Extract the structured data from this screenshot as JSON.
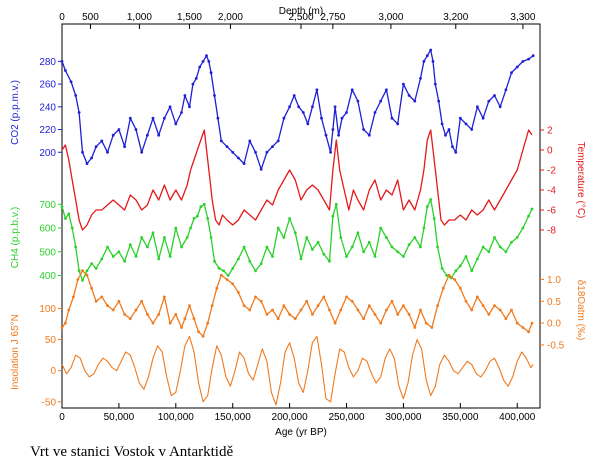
{
  "caption": "Vrt ve stanici Vostok v Antarktidě",
  "colors": {
    "co2": "#1f1fd6",
    "temperature": "#e41a1c",
    "ch4": "#2bd12b",
    "isotope": "#f07a1e",
    "insolation": "#f07a1e",
    "axis": "#000000"
  },
  "chart_data": {
    "type": "line",
    "x_axis": {
      "label": "Age (yr BP)",
      "range": [
        0,
        420000
      ],
      "ticks": [
        "0",
        "50,000",
        "100,000",
        "150,000",
        "200,000",
        "250,000",
        "300,000",
        "350,000",
        "400,000"
      ],
      "tick_values": [
        0,
        50000,
        100000,
        150000,
        200000,
        250000,
        300000,
        350000,
        400000
      ]
    },
    "top_axis": {
      "label": "Depth (m)",
      "ticks": [
        "0",
        "500",
        "1,000",
        "1,500",
        "2,000",
        "2,500",
        "2,750",
        "3,000",
        "3,200",
        "3,300"
      ],
      "tick_ages": [
        0,
        25000,
        68000,
        112000,
        148000,
        210000,
        238000,
        289000,
        346000,
        405000
      ]
    },
    "co2": {
      "label": "CO2 (p.p.m.v.)",
      "ticks": [
        200,
        220,
        240,
        260,
        280
      ],
      "range": [
        180,
        290
      ],
      "x": [
        0,
        3000,
        8000,
        12000,
        15000,
        18000,
        22000,
        26000,
        30000,
        35000,
        40000,
        45000,
        50000,
        55000,
        60000,
        65000,
        70000,
        75000,
        80000,
        85000,
        90000,
        95000,
        100000,
        105000,
        108000,
        112000,
        115000,
        118000,
        121000,
        124000,
        127000,
        129000,
        131000,
        134000,
        137000,
        140000,
        145000,
        150000,
        155000,
        160000,
        165000,
        170000,
        175000,
        180000,
        185000,
        190000,
        195000,
        200000,
        204000,
        208000,
        212000,
        216000,
        220000,
        224000,
        228000,
        232000,
        236000,
        238000,
        240000,
        243000,
        246000,
        250000,
        255000,
        260000,
        265000,
        270000,
        275000,
        280000,
        285000,
        290000,
        295000,
        300000,
        305000,
        310000,
        315000,
        318000,
        321000,
        324000,
        326000,
        328000,
        331000,
        334000,
        337000,
        340000,
        343000,
        346000,
        350000,
        355000,
        360000,
        365000,
        370000,
        375000,
        380000,
        385000,
        390000,
        395000,
        400000,
        405000,
        410000,
        414000
      ],
      "y": [
        280,
        272,
        262,
        250,
        235,
        200,
        190,
        195,
        205,
        210,
        200,
        215,
        220,
        205,
        230,
        220,
        200,
        215,
        230,
        215,
        230,
        240,
        225,
        235,
        250,
        240,
        260,
        265,
        275,
        280,
        285,
        280,
        270,
        250,
        230,
        210,
        205,
        200,
        195,
        190,
        210,
        200,
        185,
        200,
        205,
        210,
        230,
        240,
        250,
        240,
        235,
        225,
        240,
        255,
        230,
        215,
        200,
        220,
        240,
        215,
        230,
        235,
        255,
        245,
        220,
        215,
        235,
        245,
        255,
        230,
        225,
        260,
        250,
        245,
        265,
        280,
        285,
        290,
        280,
        260,
        245,
        225,
        215,
        220,
        205,
        200,
        230,
        225,
        220,
        240,
        230,
        245,
        250,
        240,
        255,
        270,
        275,
        280,
        282,
        285
      ]
    },
    "temperature": {
      "label": "Temperature (°C)",
      "ticks": [
        2,
        0,
        -2,
        -4,
        -6,
        -8
      ],
      "range": [
        -9.5,
        3.5
      ],
      "x": [
        0,
        3000,
        6000,
        9000,
        12000,
        15000,
        18000,
        22000,
        26000,
        30000,
        35000,
        40000,
        45000,
        50000,
        55000,
        60000,
        65000,
        70000,
        75000,
        80000,
        85000,
        90000,
        95000,
        100000,
        105000,
        110000,
        113000,
        116000,
        119000,
        122000,
        125000,
        128000,
        130000,
        132000,
        135000,
        138000,
        141000,
        145000,
        150000,
        155000,
        160000,
        165000,
        170000,
        175000,
        180000,
        185000,
        190000,
        195000,
        200000,
        205000,
        210000,
        215000,
        220000,
        225000,
        230000,
        235000,
        238000,
        241000,
        244000,
        248000,
        252000,
        256000,
        260000,
        265000,
        270000,
        275000,
        280000,
        285000,
        290000,
        295000,
        300000,
        305000,
        310000,
        315000,
        318000,
        321000,
        324000,
        327000,
        330000,
        333000,
        336000,
        340000,
        345000,
        350000,
        355000,
        360000,
        365000,
        370000,
        375000,
        380000,
        385000,
        390000,
        395000,
        400000,
        405000,
        410000,
        413000
      ],
      "y": [
        0,
        0.5,
        -1,
        -3,
        -5,
        -7,
        -8,
        -7.5,
        -6.5,
        -6,
        -6,
        -5.5,
        -5,
        -5.5,
        -6,
        -4.5,
        -5,
        -6,
        -5.5,
        -4,
        -5,
        -3.5,
        -5,
        -4,
        -5,
        -3.5,
        -2,
        -1,
        0,
        1,
        2,
        -1,
        -3,
        -5,
        -7,
        -7.5,
        -6.5,
        -7,
        -7.5,
        -7,
        -6,
        -6.5,
        -7,
        -6,
        -5,
        -5.5,
        -4,
        -3,
        -2,
        -3,
        -5,
        -4,
        -3.5,
        -4,
        -5,
        -6,
        -2,
        1,
        -2,
        -4,
        -6,
        -4,
        -5,
        -6,
        -4,
        -3,
        -5,
        -4,
        -4.5,
        -3,
        -6,
        -5,
        -6,
        -4,
        -2,
        1,
        2,
        -1,
        -4,
        -7,
        -7.5,
        -7,
        -7,
        -6.5,
        -7,
        -6,
        -6.5,
        -6,
        -5,
        -6,
        -5,
        -4,
        -3,
        -2,
        0,
        2,
        1.5
      ]
    },
    "ch4": {
      "label": "CH4 (p.p.b.v.)",
      "ticks": [
        400,
        500,
        600,
        700
      ],
      "range": [
        360,
        760
      ],
      "x": [
        0,
        3000,
        6000,
        9000,
        12000,
        15000,
        18000,
        22000,
        26000,
        30000,
        35000,
        40000,
        45000,
        50000,
        55000,
        60000,
        65000,
        70000,
        75000,
        80000,
        85000,
        90000,
        95000,
        100000,
        105000,
        110000,
        113000,
        116000,
        119000,
        122000,
        125000,
        128000,
        131000,
        134000,
        138000,
        142000,
        146000,
        150000,
        155000,
        160000,
        165000,
        170000,
        175000,
        180000,
        185000,
        190000,
        195000,
        200000,
        205000,
        210000,
        215000,
        220000,
        225000,
        230000,
        235000,
        238000,
        241000,
        245000,
        250000,
        255000,
        260000,
        265000,
        270000,
        275000,
        280000,
        285000,
        290000,
        295000,
        300000,
        305000,
        310000,
        315000,
        318000,
        321000,
        324000,
        327000,
        330000,
        334000,
        338000,
        342000,
        346000,
        350000,
        355000,
        360000,
        365000,
        370000,
        375000,
        380000,
        385000,
        390000,
        395000,
        400000,
        405000,
        410000,
        413000
      ],
      "y": [
        690,
        640,
        660,
        600,
        520,
        420,
        380,
        420,
        450,
        430,
        470,
        520,
        480,
        500,
        460,
        530,
        480,
        560,
        520,
        580,
        470,
        560,
        480,
        600,
        520,
        560,
        600,
        640,
        650,
        690,
        700,
        640,
        560,
        460,
        430,
        420,
        400,
        430,
        470,
        520,
        460,
        420,
        450,
        520,
        480,
        600,
        560,
        640,
        580,
        470,
        560,
        510,
        540,
        490,
        460,
        650,
        700,
        560,
        480,
        520,
        580,
        500,
        540,
        480,
        600,
        560,
        520,
        500,
        480,
        530,
        560,
        520,
        600,
        690,
        720,
        640,
        520,
        430,
        400,
        390,
        420,
        440,
        480,
        420,
        470,
        520,
        500,
        560,
        520,
        500,
        540,
        560,
        600,
        650,
        680
      ]
    },
    "isotope": {
      "label": "δ18Oatm (‰)",
      "ticks": [
        "-0.5",
        "0.0",
        "0.5",
        "1.0"
      ],
      "tick_values": [
        -0.5,
        0,
        0.5,
        1.0
      ],
      "range": [
        -0.8,
        1.4
      ],
      "x": [
        0,
        3000,
        6000,
        10000,
        14000,
        18000,
        22000,
        26000,
        30000,
        35000,
        40000,
        45000,
        50000,
        55000,
        60000,
        65000,
        70000,
        75000,
        80000,
        85000,
        90000,
        95000,
        100000,
        105000,
        108000,
        112000,
        116000,
        120000,
        124000,
        128000,
        132000,
        136000,
        140000,
        145000,
        150000,
        155000,
        160000,
        165000,
        170000,
        175000,
        180000,
        185000,
        190000,
        195000,
        200000,
        205000,
        210000,
        215000,
        220000,
        225000,
        230000,
        235000,
        240000,
        245000,
        250000,
        255000,
        260000,
        265000,
        270000,
        275000,
        280000,
        285000,
        290000,
        295000,
        300000,
        305000,
        310000,
        315000,
        320000,
        325000,
        330000,
        335000,
        340000,
        345000,
        350000,
        355000,
        360000,
        365000,
        370000,
        375000,
        380000,
        385000,
        390000,
        395000,
        400000,
        405000,
        410000,
        413000
      ],
      "y": [
        -0.1,
        0.0,
        0.3,
        0.6,
        1.0,
        1.2,
        1.1,
        0.8,
        0.5,
        0.6,
        0.4,
        0.3,
        0.5,
        0.2,
        0.1,
        0.3,
        0.5,
        0.2,
        0.0,
        0.2,
        0.6,
        0.0,
        0.2,
        -0.1,
        0.1,
        0.4,
        0.1,
        -0.2,
        -0.3,
        0.0,
        0.4,
        0.8,
        1.1,
        1.0,
        0.9,
        0.7,
        0.4,
        0.3,
        0.6,
        0.5,
        0.2,
        0.3,
        0.1,
        0.4,
        0.2,
        0.1,
        0.3,
        0.5,
        0.2,
        0.4,
        0.6,
        0.3,
        0.0,
        0.3,
        0.6,
        0.5,
        0.3,
        0.1,
        0.4,
        0.2,
        0.0,
        0.3,
        0.5,
        0.2,
        0.4,
        0.2,
        -0.1,
        0.3,
        0.0,
        -0.1,
        0.4,
        0.8,
        1.1,
        1.0,
        0.8,
        0.5,
        0.3,
        0.6,
        0.4,
        0.2,
        0.4,
        0.3,
        0.1,
        0.3,
        0.0,
        -0.1,
        -0.2,
        0.0
      ]
    },
    "insolation": {
      "label": "Insolation J 65°N",
      "ticks": [
        -50,
        0,
        50,
        100
      ],
      "range": [
        -60,
        120
      ],
      "x": [
        0,
        4000,
        8000,
        12000,
        16000,
        20000,
        24000,
        28000,
        32000,
        36000,
        40000,
        44000,
        48000,
        52000,
        56000,
        60000,
        64000,
        68000,
        72000,
        76000,
        80000,
        84000,
        88000,
        92000,
        96000,
        100000,
        104000,
        108000,
        112000,
        116000,
        120000,
        124000,
        128000,
        132000,
        136000,
        140000,
        144000,
        148000,
        152000,
        156000,
        160000,
        164000,
        168000,
        172000,
        176000,
        180000,
        184000,
        188000,
        192000,
        196000,
        200000,
        204000,
        208000,
        212000,
        216000,
        220000,
        224000,
        228000,
        232000,
        236000,
        240000,
        244000,
        248000,
        252000,
        256000,
        260000,
        264000,
        268000,
        272000,
        276000,
        280000,
        284000,
        288000,
        292000,
        296000,
        300000,
        304000,
        308000,
        312000,
        316000,
        320000,
        324000,
        328000,
        332000,
        336000,
        340000,
        344000,
        348000,
        352000,
        356000,
        360000,
        364000,
        368000,
        372000,
        376000,
        380000,
        384000,
        388000,
        392000,
        396000,
        400000,
        404000,
        408000,
        412000,
        414000
      ],
      "y": [
        10,
        -5,
        5,
        25,
        20,
        0,
        -10,
        -5,
        10,
        20,
        15,
        5,
        0,
        15,
        30,
        25,
        5,
        -20,
        -30,
        -10,
        20,
        40,
        30,
        -10,
        -40,
        -35,
        0,
        40,
        55,
        30,
        -20,
        -50,
        -40,
        5,
        40,
        25,
        -10,
        -25,
        0,
        30,
        20,
        -5,
        -15,
        10,
        35,
        15,
        -35,
        -55,
        -20,
        30,
        45,
        20,
        -20,
        -35,
        0,
        45,
        55,
        10,
        -45,
        -50,
        -5,
        35,
        30,
        5,
        -10,
        0,
        20,
        15,
        -5,
        -20,
        -10,
        20,
        35,
        20,
        -25,
        -45,
        -20,
        25,
        50,
        35,
        -15,
        -40,
        -25,
        10,
        25,
        15,
        0,
        -5,
        5,
        15,
        10,
        -5,
        -10,
        0,
        15,
        20,
        5,
        -15,
        -25,
        -10,
        15,
        30,
        20,
        5,
        10
      ]
    }
  }
}
